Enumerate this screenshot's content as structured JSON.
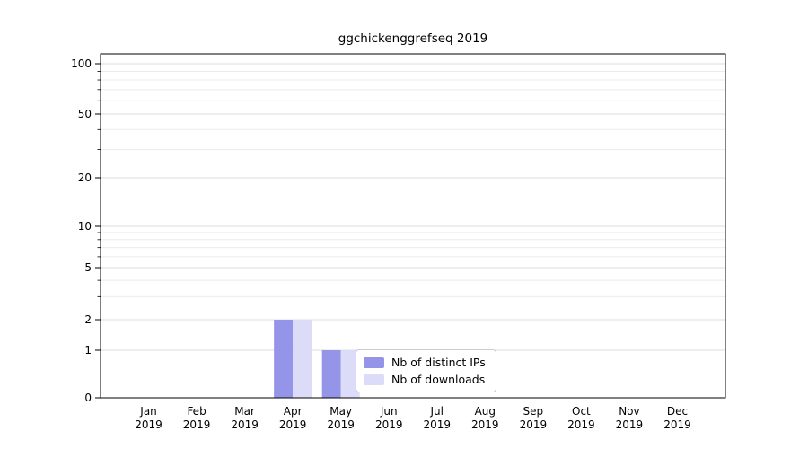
{
  "title": "ggchickenggrefseq 2019",
  "chart_data": {
    "type": "bar",
    "categories": [
      "Jan",
      "Feb",
      "Mar",
      "Apr",
      "May",
      "Jun",
      "Jul",
      "Aug",
      "Sep",
      "Oct",
      "Nov",
      "Dec"
    ],
    "x_year_label": "2019",
    "series": [
      {
        "name": "Nb of distinct IPs",
        "color": "#9494e8",
        "values": [
          0,
          0,
          0,
          2,
          1,
          0,
          0,
          0,
          0,
          0,
          0,
          0
        ]
      },
      {
        "name": "Nb of downloads",
        "color": "#dcdcf8",
        "values": [
          0,
          0,
          0,
          2,
          1,
          0,
          0,
          0,
          0,
          0,
          0,
          0
        ]
      }
    ],
    "yticks_major": [
      0,
      1,
      2,
      5,
      10,
      20,
      50,
      100
    ],
    "yticks_minor": [
      3,
      4,
      6,
      7,
      8,
      9,
      30,
      40,
      60,
      70,
      80,
      90
    ],
    "scale": "symlog",
    "ylim": [
      0,
      130
    ],
    "xlabel": "",
    "ylabel": "",
    "grid": "horizontal",
    "legend_position": "inside-bottom-center",
    "colors": {
      "axis": "#000000",
      "grid_major": "#dedede",
      "grid_minor": "#ebebeb",
      "text": "#000000",
      "legend_border": "#cccccc",
      "background": "#ffffff"
    }
  }
}
